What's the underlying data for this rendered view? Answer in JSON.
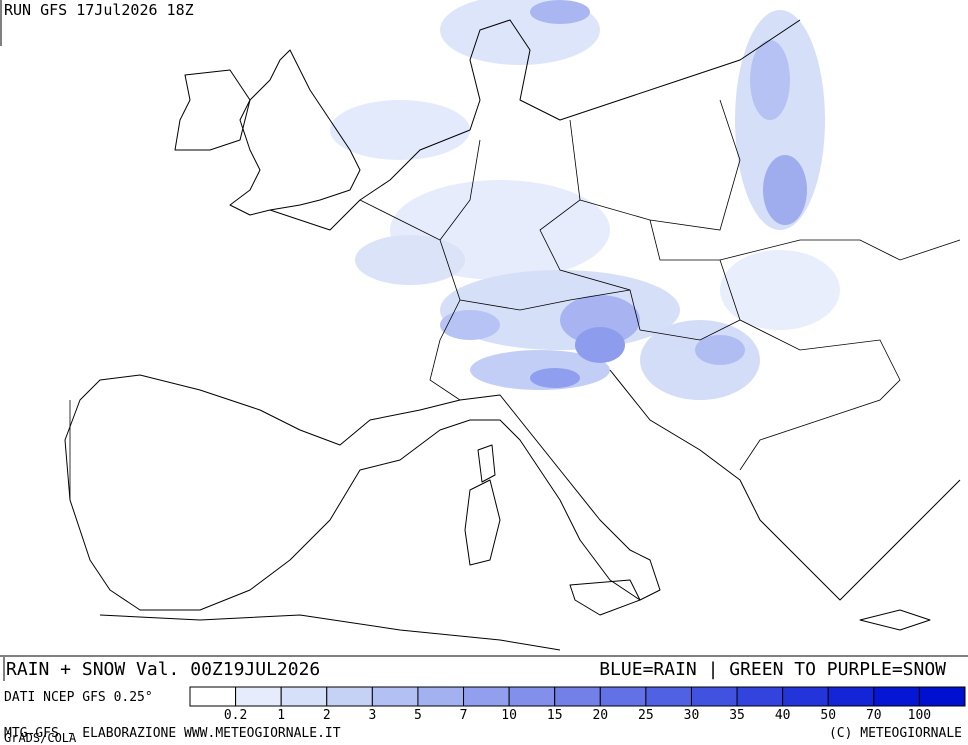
{
  "header": {
    "run": "RUN GFS 17Jul2026 18Z"
  },
  "footer": {
    "title": "RAIN + SNOW Val. 00Z19JUL2026",
    "key": "BLUE=RAIN | GREEN TO PURPLE=SNOW",
    "source": "DATI NCEP GFS 0.25°",
    "credit": "MTG-GFS - ELABORAZIONE WWW.METEOGIORNALE.IT",
    "software": "GrADS/COLA",
    "copyright": "(C) METEOGIORNALE"
  },
  "legend": {
    "labels": [
      0.2,
      1,
      2,
      3,
      5,
      7,
      10,
      15,
      20,
      25,
      30,
      35,
      40,
      50,
      70,
      100
    ],
    "colors": [
      "#ffffff",
      "#e6ecfb",
      "#d6e0f8",
      "#c6d1f6",
      "#b3c0f3",
      "#a3b1f0",
      "#929fee",
      "#8290eb",
      "#7280e8",
      "#6271e6",
      "#5161e3",
      "#4252e0",
      "#3343dd",
      "#2334da",
      "#1425d8",
      "#0616d5",
      "#0010d0"
    ]
  }
}
